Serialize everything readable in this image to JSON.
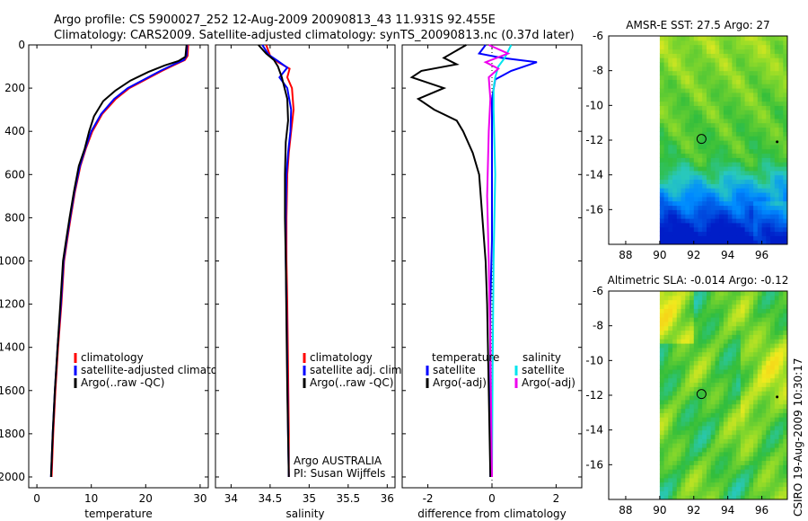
{
  "title_line1": "Argo profile: CS 5900027_252 12-Aug-2009 20090813_43 11.931S 92.455E",
  "title_line2": "Climatology: CARS2009. Satellite-adjusted climatology: synTS_20090813.nc (0.37d later)",
  "side_label": "CSIRO 19-Aug-2009 10:30:17",
  "colors": {
    "climatology": "#ff0000",
    "satellite": "#0000ff",
    "argo": "#000000",
    "sal_satellite": "#00e5ee",
    "sal_argo": "#ee00ee"
  },
  "chart_data": [
    {
      "type": "line",
      "xlabel": "temperature",
      "ylabel": "",
      "xlim": [
        -1.5,
        31.5
      ],
      "ylim": [
        2050,
        0
      ],
      "xticks": [
        0,
        10,
        20,
        30
      ],
      "yticks": [
        0,
        200,
        400,
        600,
        800,
        1000,
        1200,
        1400,
        1600,
        1800,
        2000
      ],
      "legend": [
        "climatology",
        "satellite-adjusted climatology",
        "Argo(..raw -QC)"
      ],
      "legend_position": "lower-middle",
      "series": [
        {
          "name": "climatology",
          "color": "#ff0000",
          "x": [
            27.8,
            27.7,
            27.2,
            25.5,
            23.0,
            20.0,
            17.0,
            14.5,
            12.0,
            10.2,
            9.0,
            8.0,
            7.0,
            6.2,
            5.6,
            5.0,
            4.5,
            3.9,
            3.4,
            3.0,
            2.7
          ],
          "y": [
            0,
            50,
            70,
            90,
            120,
            160,
            200,
            250,
            320,
            400,
            480,
            560,
            680,
            800,
            900,
            1000,
            1200,
            1400,
            1600,
            1800,
            2000
          ]
        },
        {
          "name": "satellite-adjusted climatology",
          "color": "#0000ff",
          "x": [
            27.6,
            27.5,
            27.0,
            25.2,
            22.7,
            19.7,
            16.7,
            14.2,
            11.8,
            10.0,
            8.9,
            7.9,
            6.9,
            6.1,
            5.5,
            4.9,
            4.4,
            3.8,
            3.3,
            2.9,
            2.6
          ],
          "y": [
            0,
            50,
            70,
            90,
            120,
            160,
            200,
            250,
            320,
            400,
            480,
            560,
            680,
            800,
            900,
            1000,
            1200,
            1400,
            1600,
            1800,
            2000
          ]
        },
        {
          "name": "Argo(..raw -QC)",
          "color": "#000000",
          "x": [
            27.5,
            27.3,
            26.0,
            23.5,
            20.5,
            17.2,
            14.5,
            12.2,
            10.5,
            9.6,
            8.8,
            7.7,
            6.8,
            6.0,
            5.4,
            4.8,
            4.3,
            3.8,
            3.3,
            2.9,
            2.6
          ],
          "y": [
            0,
            55,
            75,
            95,
            125,
            165,
            210,
            260,
            330,
            400,
            480,
            560,
            680,
            800,
            900,
            1000,
            1200,
            1400,
            1600,
            1800,
            2000
          ]
        }
      ]
    },
    {
      "type": "line",
      "xlabel": "salinity",
      "xlim": [
        33.8,
        36.1
      ],
      "ylim": [
        2050,
        0
      ],
      "xticks": [
        34,
        34.5,
        35,
        35.5,
        36
      ],
      "xticklabels": [
        "34",
        "34.5",
        "35",
        "35.5",
        "36"
      ],
      "legend": [
        "climatology",
        "satellite adj. clim.",
        "Argo(..raw -QC)"
      ],
      "legend_position": "lower-middle",
      "annotation": [
        "Argo AUSTRALIA",
        "PI: Susan Wijffels"
      ],
      "series": [
        {
          "name": "climatology",
          "color": "#ff0000",
          "x": [
            34.45,
            34.5,
            34.6,
            34.75,
            34.72,
            34.78,
            34.8,
            34.77,
            34.74,
            34.72,
            34.71,
            34.71,
            34.72,
            34.73,
            34.74,
            34.74
          ],
          "y": [
            0,
            50,
            80,
            110,
            150,
            200,
            300,
            400,
            500,
            600,
            800,
            1000,
            1200,
            1500,
            1800,
            2000
          ]
        },
        {
          "name": "satellite adj. clim.",
          "color": "#0000ff",
          "x": [
            34.4,
            34.48,
            34.6,
            34.72,
            34.62,
            34.72,
            34.77,
            34.76,
            34.73,
            34.71,
            34.7,
            34.7,
            34.71,
            34.72,
            34.73,
            34.74
          ],
          "y": [
            0,
            45,
            75,
            105,
            150,
            200,
            300,
            400,
            500,
            600,
            800,
            1000,
            1200,
            1500,
            1800,
            2000
          ]
        },
        {
          "name": "Argo(..raw -QC)",
          "color": "#000000",
          "x": [
            34.35,
            34.45,
            34.55,
            34.6,
            34.65,
            34.72,
            34.73,
            34.7,
            34.69,
            34.69,
            34.7,
            34.71,
            34.72,
            34.74
          ],
          "y": [
            0,
            40,
            70,
            100,
            150,
            250,
            350,
            450,
            600,
            800,
            1000,
            1300,
            1600,
            2000
          ]
        }
      ]
    },
    {
      "type": "line",
      "xlabel": "difference from climatology",
      "xlim": [
        -2.8,
        2.8
      ],
      "ylim": [
        2050,
        0
      ],
      "xticks": [
        -2,
        0,
        2
      ],
      "legend_headers": [
        "temperature",
        "salinity"
      ],
      "legend": [
        "satellite",
        "Argo(-adj)",
        "satellite",
        "Argo(-adj)"
      ],
      "legend_position": "lower-middle",
      "series": [
        {
          "name": "satellite",
          "group": "temperature",
          "color": "#0000ff",
          "x": [
            -0.2,
            -0.4,
            0.3,
            1.4,
            0.6,
            0.1,
            0.0,
            0.0,
            0.0,
            0.0,
            -0.05,
            -0.05,
            -0.05,
            -0.05
          ],
          "y": [
            0,
            40,
            60,
            80,
            120,
            160,
            250,
            400,
            600,
            900,
            1200,
            1500,
            1800,
            2000
          ]
        },
        {
          "name": "Argo(-adj)",
          "group": "temperature",
          "color": "#000000",
          "x": [
            -0.8,
            -1.5,
            -1.1,
            -2.2,
            -2.5,
            -1.5,
            -2.3,
            -1.8,
            -1.1,
            -0.9,
            -0.6,
            -0.4,
            -0.3,
            -0.2,
            -0.15,
            -0.1,
            -0.05
          ],
          "y": [
            0,
            60,
            90,
            120,
            150,
            200,
            250,
            300,
            350,
            400,
            500,
            600,
            800,
            1000,
            1200,
            1600,
            2000
          ]
        },
        {
          "name": "satellite",
          "group": "salinity",
          "color": "#00e5ee",
          "x": [
            0.6,
            0.4,
            0.2,
            0.1,
            0.05,
            0.05,
            0.1,
            0.05,
            0.02,
            0.0
          ],
          "y": [
            0,
            60,
            100,
            150,
            200,
            300,
            600,
            1000,
            1500,
            2000
          ]
        },
        {
          "name": "Argo(-adj)",
          "group": "salinity",
          "color": "#ee00ee",
          "x": [
            -0.1,
            0.5,
            -0.2,
            0.2,
            -0.1,
            -0.05,
            -0.1,
            -0.15,
            -0.1,
            -0.05,
            0.0
          ],
          "y": [
            0,
            40,
            80,
            110,
            150,
            250,
            400,
            700,
            1000,
            1400,
            2000
          ]
        }
      ]
    },
    {
      "type": "heatmap",
      "title": "AMSR-E SST: 27.5 Argo: 27",
      "xlim": [
        87,
        97.5
      ],
      "ylim": [
        -18,
        -6
      ],
      "xticks": [
        88,
        90,
        92,
        94,
        96
      ],
      "yticks": [
        -6,
        -8,
        -10,
        -12,
        -14,
        -16
      ],
      "data_lon_range": [
        90,
        97.5
      ],
      "profile_position": {
        "lon": 92.455,
        "lat": -11.931
      }
    },
    {
      "type": "heatmap",
      "title": "Altimetric SLA: -0.014 Argo: -0.12",
      "xlim": [
        87,
        97.5
      ],
      "ylim": [
        -18,
        -6
      ],
      "xticks": [
        88,
        90,
        92,
        94,
        96
      ],
      "yticks": [
        -6,
        -8,
        -10,
        -12,
        -14,
        -16
      ],
      "data_lon_range": [
        90,
        97.5
      ],
      "profile_position": {
        "lon": 92.455,
        "lat": -11.931
      }
    }
  ]
}
